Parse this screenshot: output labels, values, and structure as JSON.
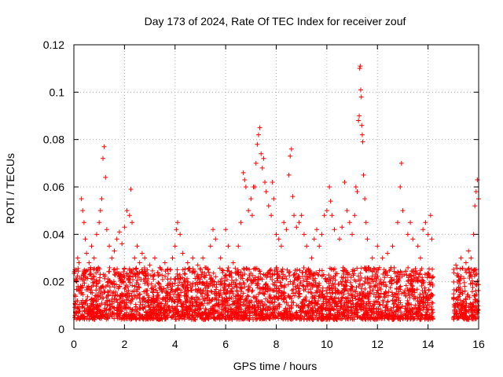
{
  "chart_data": {
    "type": "scatter",
    "title": "Day 173 of 2024, Rate Of TEC Index for receiver zouf",
    "xlabel": "GPS time / hours",
    "ylabel": "ROTI / TECUs",
    "xlim": [
      0,
      16
    ],
    "ylim": [
      0,
      0.12
    ],
    "xticks": [
      0,
      2,
      4,
      6,
      8,
      10,
      12,
      14,
      16
    ],
    "yticks": [
      0,
      0.02,
      0.04,
      0.06,
      0.08,
      0.1,
      0.12
    ],
    "xtick_labels": [
      "0",
      "2",
      "4",
      "6",
      "8",
      "10",
      "12",
      "14",
      "16"
    ],
    "ytick_labels": [
      "0",
      "0.02",
      "0.04",
      "0.06",
      "0.08",
      "0.1",
      "0.12"
    ],
    "grid": true,
    "marker": "+",
    "color": "#ff0000",
    "gaps": [
      [
        14.2,
        15.0
      ]
    ],
    "background_band": {
      "note": "dense cloud of points between roughly 0.005 and 0.025 across all hours",
      "segments": [
        [
          0.0,
          14.2
        ],
        [
          15.0,
          16.0
        ]
      ],
      "low": 0.004,
      "high": 0.026
    },
    "series": [
      {
        "name": "ROTI",
        "points": [
          [
            0.1,
            0.025
          ],
          [
            0.15,
            0.03
          ],
          [
            0.2,
            0.028
          ],
          [
            0.3,
            0.055
          ],
          [
            0.35,
            0.05
          ],
          [
            0.4,
            0.045
          ],
          [
            0.45,
            0.038
          ],
          [
            0.5,
            0.032
          ],
          [
            0.6,
            0.028
          ],
          [
            0.7,
            0.035
          ],
          [
            0.8,
            0.03
          ],
          [
            0.9,
            0.04
          ],
          [
            1.0,
            0.045
          ],
          [
            1.05,
            0.05
          ],
          [
            1.1,
            0.055
          ],
          [
            1.15,
            0.072
          ],
          [
            1.2,
            0.077
          ],
          [
            1.25,
            0.064
          ],
          [
            1.3,
            0.042
          ],
          [
            1.4,
            0.035
          ],
          [
            1.5,
            0.03
          ],
          [
            1.6,
            0.033
          ],
          [
            1.7,
            0.038
          ],
          [
            1.8,
            0.041
          ],
          [
            1.9,
            0.036
          ],
          [
            2.0,
            0.043
          ],
          [
            2.1,
            0.05
          ],
          [
            2.2,
            0.048
          ],
          [
            2.25,
            0.059
          ],
          [
            2.3,
            0.045
          ],
          [
            2.4,
            0.03
          ],
          [
            2.5,
            0.035
          ],
          [
            2.6,
            0.028
          ],
          [
            2.7,
            0.032
          ],
          [
            2.8,
            0.03
          ],
          [
            2.9,
            0.025
          ],
          [
            3.0,
            0.027
          ],
          [
            3.2,
            0.03
          ],
          [
            3.4,
            0.026
          ],
          [
            3.6,
            0.028
          ],
          [
            3.8,
            0.025
          ],
          [
            3.9,
            0.03
          ],
          [
            4.0,
            0.035
          ],
          [
            4.05,
            0.042
          ],
          [
            4.1,
            0.045
          ],
          [
            4.2,
            0.04
          ],
          [
            4.3,
            0.032
          ],
          [
            4.5,
            0.028
          ],
          [
            4.7,
            0.03
          ],
          [
            4.9,
            0.027
          ],
          [
            5.1,
            0.03
          ],
          [
            5.3,
            0.025
          ],
          [
            5.4,
            0.035
          ],
          [
            5.5,
            0.042
          ],
          [
            5.6,
            0.038
          ],
          [
            5.8,
            0.03
          ],
          [
            6.0,
            0.042
          ],
          [
            6.1,
            0.035
          ],
          [
            6.3,
            0.028
          ],
          [
            6.5,
            0.035
          ],
          [
            6.6,
            0.045
          ],
          [
            6.7,
            0.066
          ],
          [
            6.75,
            0.063
          ],
          [
            6.8,
            0.06
          ],
          [
            6.9,
            0.05
          ],
          [
            7.0,
            0.055
          ],
          [
            7.05,
            0.048
          ],
          [
            7.1,
            0.06
          ],
          [
            7.15,
            0.06
          ],
          [
            7.2,
            0.07
          ],
          [
            7.25,
            0.078
          ],
          [
            7.3,
            0.082
          ],
          [
            7.35,
            0.085
          ],
          [
            7.4,
            0.074
          ],
          [
            7.45,
            0.068
          ],
          [
            7.5,
            0.072
          ],
          [
            7.55,
            0.062
          ],
          [
            7.6,
            0.058
          ],
          [
            7.7,
            0.052
          ],
          [
            7.8,
            0.048
          ],
          [
            7.85,
            0.062
          ],
          [
            7.9,
            0.055
          ],
          [
            8.0,
            0.04
          ],
          [
            8.1,
            0.038
          ],
          [
            8.2,
            0.035
          ],
          [
            8.3,
            0.045
          ],
          [
            8.4,
            0.042
          ],
          [
            8.5,
            0.065
          ],
          [
            8.55,
            0.073
          ],
          [
            8.6,
            0.076
          ],
          [
            8.65,
            0.056
          ],
          [
            8.7,
            0.048
          ],
          [
            8.8,
            0.043
          ],
          [
            8.9,
            0.045
          ],
          [
            9.0,
            0.048
          ],
          [
            9.1,
            0.04
          ],
          [
            9.2,
            0.035
          ],
          [
            9.4,
            0.03
          ],
          [
            9.5,
            0.038
          ],
          [
            9.6,
            0.042
          ],
          [
            9.7,
            0.035
          ],
          [
            9.8,
            0.04
          ],
          [
            9.9,
            0.048
          ],
          [
            10.0,
            0.05
          ],
          [
            10.1,
            0.06
          ],
          [
            10.15,
            0.054
          ],
          [
            10.2,
            0.048
          ],
          [
            10.3,
            0.042
          ],
          [
            10.5,
            0.038
          ],
          [
            10.6,
            0.043
          ],
          [
            10.7,
            0.062
          ],
          [
            10.8,
            0.05
          ],
          [
            10.9,
            0.045
          ],
          [
            11.0,
            0.04
          ],
          [
            11.1,
            0.048
          ],
          [
            11.15,
            0.06
          ],
          [
            11.2,
            0.058
          ],
          [
            11.25,
            0.088
          ],
          [
            11.28,
            0.09
          ],
          [
            11.3,
            0.11
          ],
          [
            11.32,
            0.111
          ],
          [
            11.34,
            0.101
          ],
          [
            11.36,
            0.098
          ],
          [
            11.38,
            0.086
          ],
          [
            11.4,
            0.082
          ],
          [
            11.42,
            0.079
          ],
          [
            11.45,
            0.065
          ],
          [
            11.5,
            0.055
          ],
          [
            11.55,
            0.045
          ],
          [
            11.6,
            0.038
          ],
          [
            11.8,
            0.03
          ],
          [
            12.0,
            0.035
          ],
          [
            12.2,
            0.03
          ],
          [
            12.4,
            0.032
          ],
          [
            12.6,
            0.035
          ],
          [
            12.8,
            0.045
          ],
          [
            12.9,
            0.06
          ],
          [
            12.95,
            0.07
          ],
          [
            13.0,
            0.05
          ],
          [
            13.2,
            0.04
          ],
          [
            13.3,
            0.045
          ],
          [
            13.4,
            0.038
          ],
          [
            13.6,
            0.035
          ],
          [
            13.7,
            0.03
          ],
          [
            13.8,
            0.042
          ],
          [
            13.9,
            0.045
          ],
          [
            14.0,
            0.04
          ],
          [
            14.1,
            0.048
          ],
          [
            14.15,
            0.038
          ],
          [
            15.1,
            0.027
          ],
          [
            15.3,
            0.03
          ],
          [
            15.5,
            0.028
          ],
          [
            15.6,
            0.033
          ],
          [
            15.7,
            0.03
          ],
          [
            15.8,
            0.04
          ],
          [
            15.85,
            0.052
          ],
          [
            15.9,
            0.058
          ],
          [
            15.95,
            0.063
          ],
          [
            16.0,
            0.055
          ]
        ]
      }
    ]
  }
}
